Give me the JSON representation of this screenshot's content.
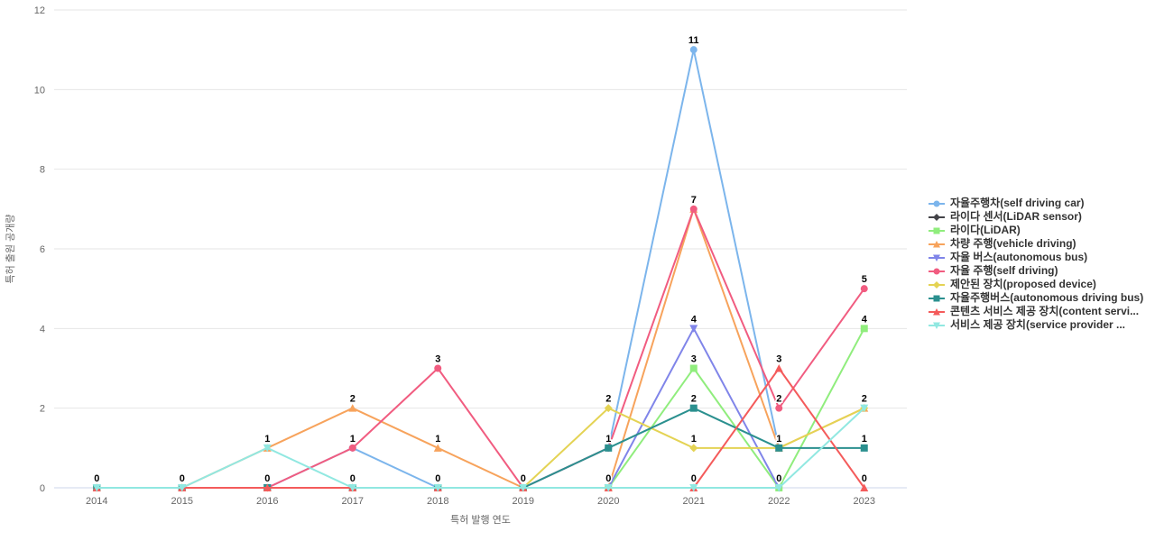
{
  "chart_data": {
    "type": "line",
    "x": [
      2014,
      2015,
      2016,
      2017,
      2018,
      2019,
      2020,
      2021,
      2022,
      2023
    ],
    "xlabel": "특허 발행 연도",
    "ylabel": "특허 출원 공개량",
    "ylim": [
      0,
      12
    ],
    "yticks": [
      0,
      2,
      4,
      6,
      8,
      10,
      12
    ],
    "grid": true,
    "legend_position": "right",
    "grid_color": "#e6e6e6",
    "axis_line_color": "#ccd6eb",
    "axis_text_color": "#666666",
    "label_text_color": "#000000",
    "series": [
      {
        "name": "자율주행차(self driving car)",
        "color": "#7cb5ec",
        "marker": "circle",
        "values": [
          0,
          0,
          0,
          1,
          0,
          0,
          1,
          11,
          1,
          null
        ]
      },
      {
        "name": "라이다 센서(LiDAR sensor)",
        "color": "#434348",
        "marker": "diamond",
        "values": [
          null,
          null,
          null,
          null,
          null,
          null,
          null,
          null,
          null,
          null
        ]
      },
      {
        "name": "라이다(LiDAR)",
        "color": "#90ed7d",
        "marker": "square",
        "values": [
          0,
          0,
          0,
          0,
          0,
          0,
          0,
          3,
          0,
          4
        ]
      },
      {
        "name": "차량 주행(vehicle driving)",
        "color": "#f7a35c",
        "marker": "triangle",
        "values": [
          0,
          0,
          1,
          2,
          1,
          0,
          0,
          7,
          1,
          2
        ]
      },
      {
        "name": "자율 버스(autonomous bus)",
        "color": "#8085e9",
        "marker": "triangle-down",
        "values": [
          0,
          0,
          0,
          0,
          0,
          0,
          0,
          4,
          0,
          null
        ]
      },
      {
        "name": "자율 주행(self driving)",
        "color": "#f15c80",
        "marker": "circle",
        "values": [
          0,
          0,
          0,
          1,
          3,
          0,
          1,
          7,
          2,
          5
        ]
      },
      {
        "name": "제안된 장치(proposed device)",
        "color": "#e4d354",
        "marker": "diamond",
        "values": [
          0,
          0,
          0,
          0,
          0,
          0,
          2,
          1,
          1,
          2
        ]
      },
      {
        "name": "자율주행버스(autonomous driving bus)",
        "color": "#2b908f",
        "marker": "square",
        "values": [
          0,
          0,
          0,
          0,
          0,
          0,
          1,
          2,
          1,
          1
        ]
      },
      {
        "name": "콘텐츠 서비스 제공 장치(content servi...",
        "color": "#f45b5b",
        "marker": "triangle",
        "values": [
          0,
          0,
          0,
          0,
          0,
          0,
          0,
          0,
          3,
          0
        ]
      },
      {
        "name": "서비스 제공 장치(service provider ...",
        "color": "#91e8e1",
        "marker": "triangle-down",
        "values": [
          0,
          0,
          1,
          0,
          0,
          0,
          0,
          0,
          0,
          2
        ]
      }
    ]
  }
}
